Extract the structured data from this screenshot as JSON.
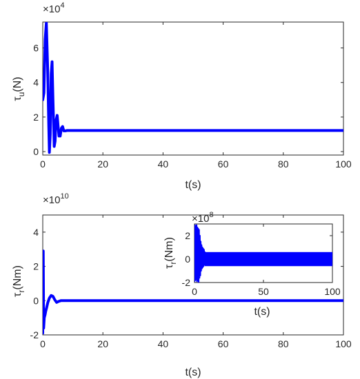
{
  "chart_data": [
    {
      "id": "tau_u",
      "type": "line",
      "ylabel": "τu (N)",
      "ylabel_main": "τ",
      "ylabel_sub": "u",
      "ylabel_unit": "(N)",
      "xlabel": "t(s)",
      "scale_factor": "×10",
      "scale_exponent": "4",
      "xlim": [
        0,
        100
      ],
      "ylim": [
        -0.2,
        7.5
      ],
      "xticks": [
        0,
        20,
        40,
        60,
        80,
        100
      ],
      "yticks": [
        0,
        2,
        4,
        6
      ],
      "grid": false,
      "series_color": "#0000ff",
      "series": [
        {
          "values_note": "",
          "x": [
            0,
            0.4,
            0.8,
            1.2,
            1.6,
            2.0,
            2.2,
            2.5,
            2.8,
            3.1,
            3.4,
            3.8,
            4.1,
            4.4,
            4.8,
            5.1,
            5.4,
            5.8,
            6.2,
            6.6,
            7.0,
            7.5,
            8,
            9,
            10,
            12,
            15,
            20,
            30,
            40,
            50,
            60,
            70,
            80,
            90,
            100
          ],
          "y": [
            3.0,
            3.4,
            6.5,
            7.45,
            5.0,
            1.5,
            -0.05,
            1.0,
            4.5,
            5.2,
            3.0,
            0.3,
            0.6,
            1.8,
            2.1,
            1.5,
            0.9,
            0.9,
            1.35,
            1.45,
            1.2,
            1.2,
            1.22,
            1.22,
            1.22,
            1.22,
            1.22,
            1.22,
            1.22,
            1.22,
            1.22,
            1.22,
            1.22,
            1.22,
            1.22,
            1.22
          ]
        }
      ]
    },
    {
      "id": "tau_r",
      "type": "line",
      "ylabel_main": "τ",
      "ylabel_sub": "r",
      "ylabel_unit": "(Nm)",
      "xlabel": "t(s)",
      "scale_factor": "×10",
      "scale_exponent": "10",
      "xlim": [
        0,
        100
      ],
      "ylim": [
        -2,
        5
      ],
      "xticks": [
        0,
        20,
        40,
        60,
        80,
        100
      ],
      "yticks": [
        -2,
        0,
        2,
        4
      ],
      "grid": false,
      "series_color": "#0000ff",
      "series": [
        {
          "x": [
            0,
            0.15,
            0.3,
            0.5,
            0.8,
            1.0,
            1.3,
            1.7,
            2.2,
            2.8,
            3.4,
            4.0,
            4.6,
            5.2,
            6.0,
            7.0,
            8.0,
            10,
            20,
            40,
            60,
            80,
            100
          ],
          "y": [
            -1.9,
            2.9,
            -1.6,
            -1.0,
            -0.8,
            -0.6,
            -0.4,
            -0.1,
            0.15,
            0.3,
            0.25,
            0.05,
            -0.1,
            -0.05,
            0.0,
            0.0,
            0.0,
            0.0,
            0.0,
            0.0,
            0.0,
            0.0,
            0.0
          ]
        }
      ],
      "inset": {
        "ylabel_main": "τ",
        "ylabel_sub": "r",
        "ylabel_unit": "(Nm)",
        "xlabel": "t(s)",
        "scale_factor": "×10",
        "scale_exponent": "8",
        "xlim": [
          0,
          100
        ],
        "ylim": [
          -2,
          3
        ],
        "xticks": [
          0,
          50,
          100
        ],
        "yticks": [
          -2,
          0,
          2
        ],
        "band_center": 0.0,
        "band_halfwidth": 0.6,
        "spike_x": [
          0,
          0.3,
          0.6,
          0.9,
          1.2,
          1.5,
          1.8,
          2.1,
          2.4,
          2.7,
          3.0,
          3.3,
          3.6,
          3.9,
          4.2,
          4.5,
          4.8,
          5.1,
          5.4,
          5.7,
          6.0,
          6.3,
          6.6,
          6.9,
          7.2,
          7.5
        ],
        "spike_y": [
          -1.9,
          2.9,
          -1.8,
          2.8,
          -1.7,
          2.9,
          -1.9,
          2.7,
          -1.8,
          2.6,
          -2.0,
          2.5,
          -1.6,
          2.0,
          -1.4,
          1.5,
          -1.0,
          1.2,
          -0.8,
          1.0,
          -0.7,
          0.9,
          -0.6,
          0.8,
          -0.5,
          0.6
        ]
      }
    }
  ]
}
